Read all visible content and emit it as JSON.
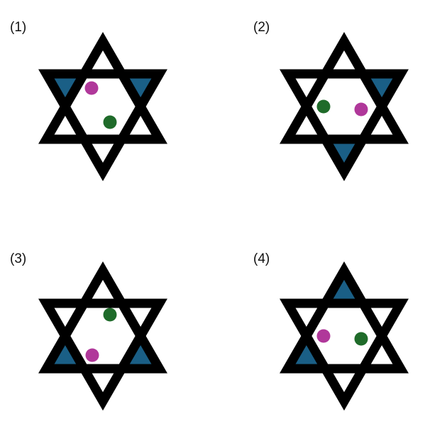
{
  "colors": {
    "outline": "#000000",
    "fill": "#1a5f86",
    "magenta_dot": "#b0389a",
    "green_dot": "#1f6b2a",
    "background": "#ffffff"
  },
  "panels": [
    {
      "label": "(1)",
      "filled_tips": [
        "upper-left",
        "upper-right"
      ],
      "dots": [
        {
          "color": "magenta",
          "position": "upper-left"
        },
        {
          "color": "green",
          "position": "lower-right"
        }
      ]
    },
    {
      "label": "(2)",
      "filled_tips": [
        "upper-right",
        "bottom"
      ],
      "dots": [
        {
          "color": "green",
          "position": "left"
        },
        {
          "color": "magenta",
          "position": "right"
        }
      ]
    },
    {
      "label": "(3)",
      "filled_tips": [
        "lower-left",
        "lower-right"
      ],
      "dots": [
        {
          "color": "green",
          "position": "upper-right"
        },
        {
          "color": "magenta",
          "position": "lower-left"
        }
      ]
    },
    {
      "label": "(4)",
      "filled_tips": [
        "top",
        "lower-left"
      ],
      "dots": [
        {
          "color": "magenta",
          "position": "left"
        },
        {
          "color": "green",
          "position": "right"
        }
      ]
    }
  ]
}
